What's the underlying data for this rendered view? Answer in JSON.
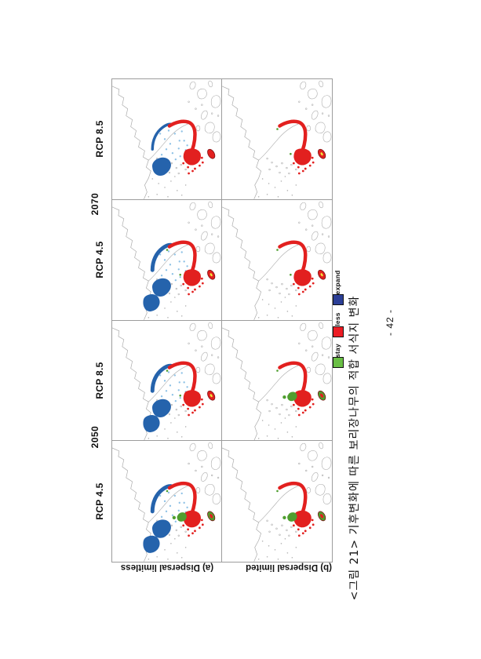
{
  "page": {
    "number_label": "- 42 -"
  },
  "figure": {
    "caption": "<그림 21> 기후변화에 따른 보리장나무의 적합 서식지 변화",
    "year_groups": [
      "2070",
      "2050"
    ],
    "row_scenarios": [
      "RCP 8.5",
      "RCP 4.5",
      "RCP 8.5",
      "RCP 4.5"
    ],
    "dispersal_labels": [
      "(a) Dispersal limitless",
      "(b) Dispersal limited"
    ],
    "legend": [
      {
        "label": "stay",
        "color": "#6abf45"
      },
      {
        "label": "less",
        "color": "#ec1c24"
      },
      {
        "label": "expand",
        "color": "#2b3e96"
      }
    ],
    "colors": {
      "expand_map": "#2563ac",
      "expand_scatter": "#8fc2e6",
      "less_map": "#e2201f",
      "stay_map": "#4f9e2f",
      "coast": "#ababab",
      "island_dot": "#b3b3b3",
      "jeju_outline": "#7c1417",
      "jeju_inner_yellow": "#efe73b"
    },
    "panels": [
      {
        "year": "2070",
        "rcp": "RCP 8.5",
        "dispersal": "limitless",
        "features": {
          "expand": "medium",
          "less": true,
          "stay": "none",
          "jeju": "red"
        }
      },
      {
        "year": "2070",
        "rcp": "RCP 8.5",
        "dispersal": "limited",
        "features": {
          "expand": "none",
          "less": true,
          "stay": "trace",
          "jeju": "red-yellow"
        }
      },
      {
        "year": "2070",
        "rcp": "RCP 4.5",
        "dispersal": "limitless",
        "features": {
          "expand": "large",
          "less": true,
          "stay": "trace",
          "jeju": "red-yellow"
        }
      },
      {
        "year": "2070",
        "rcp": "RCP 4.5",
        "dispersal": "limited",
        "features": {
          "expand": "none",
          "less": true,
          "stay": "trace",
          "jeju": "red-yellow"
        }
      },
      {
        "year": "2050",
        "rcp": "RCP 8.5",
        "dispersal": "limitless",
        "features": {
          "expand": "large",
          "less": true,
          "stay": "trace",
          "jeju": "red-yellow"
        }
      },
      {
        "year": "2050",
        "rcp": "RCP 8.5",
        "dispersal": "limited",
        "features": {
          "expand": "none",
          "less": true,
          "stay": "blobs",
          "jeju": "green-red"
        }
      },
      {
        "year": "2050",
        "rcp": "RCP 4.5",
        "dispersal": "limitless",
        "features": {
          "expand": "large",
          "less": true,
          "stay": "blobs",
          "jeju": "green-red"
        }
      },
      {
        "year": "2050",
        "rcp": "RCP 4.5",
        "dispersal": "limited",
        "features": {
          "expand": "none",
          "less": true,
          "stay": "blobs",
          "jeju": "green-red"
        }
      }
    ]
  }
}
